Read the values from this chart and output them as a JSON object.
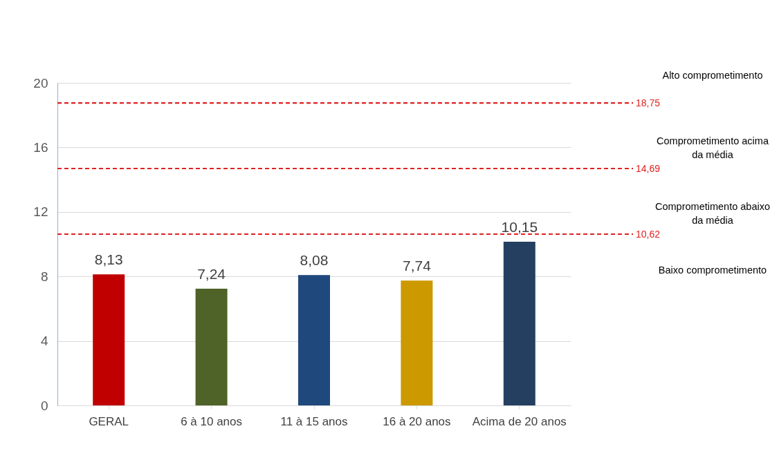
{
  "chart_data": {
    "type": "bar",
    "categories": [
      "GERAL",
      "6 à 10 anos",
      "11 à 15 anos",
      "16 à 20 anos",
      "Acima de 20 anos"
    ],
    "values": [
      8.13,
      7.24,
      8.08,
      7.74,
      10.15
    ],
    "colors": [
      "#c00000",
      "#4f6228",
      "#1f497d",
      "#cc9900",
      "#243f60"
    ],
    "value_labels": [
      "8,13",
      "7,24",
      "8,08",
      "7,74",
      "10,15"
    ],
    "ylim": [
      0,
      20
    ],
    "yticks": [
      0,
      4,
      8,
      12,
      16,
      20
    ],
    "grid": "y",
    "ref_lines": [
      {
        "axis": "y",
        "value": 18.75,
        "label": "18,75",
        "color": "#e02020",
        "line_style": "dashed"
      },
      {
        "axis": "y",
        "value": 14.69,
        "label": "14,69",
        "color": "#e02020",
        "line_style": "dashed"
      },
      {
        "axis": "y",
        "value": 10.62,
        "label": "10,62",
        "color": "#e02020",
        "line_style": "dashed"
      }
    ],
    "annotations": [
      "Alto comprometimento",
      "Comprometimento acima da média",
      "Comprometimento abaixo da média",
      "Baixo comprometimento"
    ]
  }
}
